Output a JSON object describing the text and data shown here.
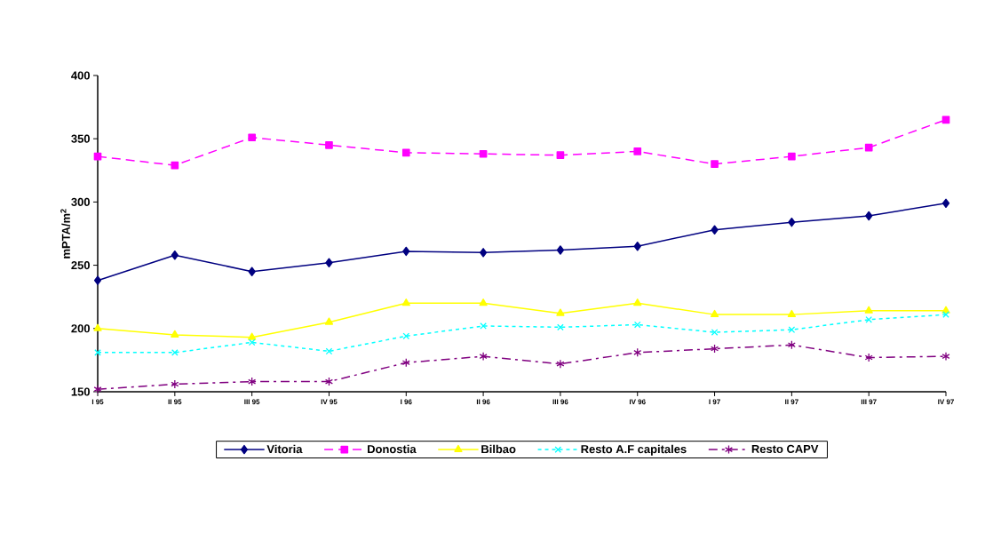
{
  "chart_data": {
    "type": "line",
    "ylabel": "mPTA/m$^{2}$",
    "categories": [
      "I 95",
      "II 95",
      "III 95",
      "IV 95",
      "I 96",
      "II 96",
      "III 96",
      "IV 96",
      "I 97",
      "II 97",
      "III 97",
      "IV 97"
    ],
    "ylim": [
      150,
      400
    ],
    "yticks": [
      150,
      200,
      250,
      300,
      350,
      400
    ],
    "grid": false,
    "legend": "bottom",
    "series": [
      {
        "name": "Vitoria",
        "color": "#000080",
        "marker": "diamond",
        "line_style": "solid",
        "values": [
          238,
          258,
          245,
          252,
          261,
          260,
          262,
          265,
          278,
          284,
          289,
          299
        ]
      },
      {
        "name": "Donostia",
        "color": "#ff00ff",
        "marker": "square",
        "line_style": "dashed",
        "values": [
          336,
          329,
          351,
          345,
          339,
          338,
          337,
          340,
          330,
          336,
          343,
          365
        ]
      },
      {
        "name": "Bilbao",
        "color": "#ffff00",
        "marker": "triangle",
        "line_style": "solid",
        "values": [
          200,
          195,
          193,
          205,
          220,
          220,
          212,
          220,
          211,
          211,
          214,
          214
        ]
      },
      {
        "name": "Resto A.F capitales",
        "color": "#00ffff",
        "marker": "cross",
        "line_style": "dotted",
        "values": [
          181,
          181,
          189,
          182,
          194,
          202,
          201,
          203,
          197,
          199,
          207,
          211
        ]
      },
      {
        "name": "Resto CAPV",
        "color": "#800080",
        "marker": "cross",
        "line_style": "dashdot",
        "values": [
          152,
          156,
          158,
          158,
          173,
          178,
          172,
          181,
          184,
          187,
          177,
          178
        ]
      }
    ]
  }
}
